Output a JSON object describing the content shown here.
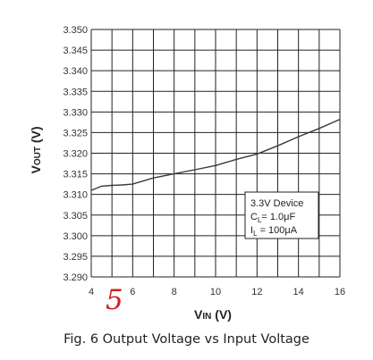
{
  "chart_data": {
    "type": "line",
    "x": [
      4,
      4.5,
      5,
      5.5,
      6,
      7,
      8,
      9,
      10,
      11,
      12,
      13,
      14,
      15,
      16
    ],
    "y": [
      3.311,
      3.312,
      3.3122,
      3.3123,
      3.3125,
      3.314,
      3.315,
      3.316,
      3.317,
      3.3185,
      3.3198,
      3.3218,
      3.324,
      3.326,
      3.3282
    ],
    "xlabel_main": "V",
    "xlabel_sub": "IN",
    "xlabel_unit": " (V)",
    "ylabel_main": "V",
    "ylabel_sub": "OUT",
    "ylabel_unit": " (V)",
    "xlim": [
      4,
      16
    ],
    "ylim": [
      3.29,
      3.35
    ],
    "x_ticks": [
      "4",
      "6",
      "8",
      "10",
      "12",
      "14",
      "16"
    ],
    "y_ticks": [
      "3.350",
      "3.345",
      "3.340",
      "3.335",
      "3.330",
      "3.325",
      "3.320",
      "3.315",
      "3.310",
      "3.305",
      "3.300",
      "3.295",
      "3.290"
    ],
    "grid": true,
    "legend_position": "bottom-right",
    "annotation": {
      "line1": "3.3V Device",
      "line2_prefix": "C",
      "line2_sub": "L",
      "line2_value": "= 1.0μF",
      "line3_prefix": "I",
      "line3_sub": "L",
      "line3_value": " = 100μA"
    },
    "line_color": "#3a3a3a",
    "grid_color": "#222222"
  },
  "handwritten_note": "5",
  "handwritten_color": "#d42020",
  "caption": "Fig. 6 Output Voltage vs Input Voltage"
}
